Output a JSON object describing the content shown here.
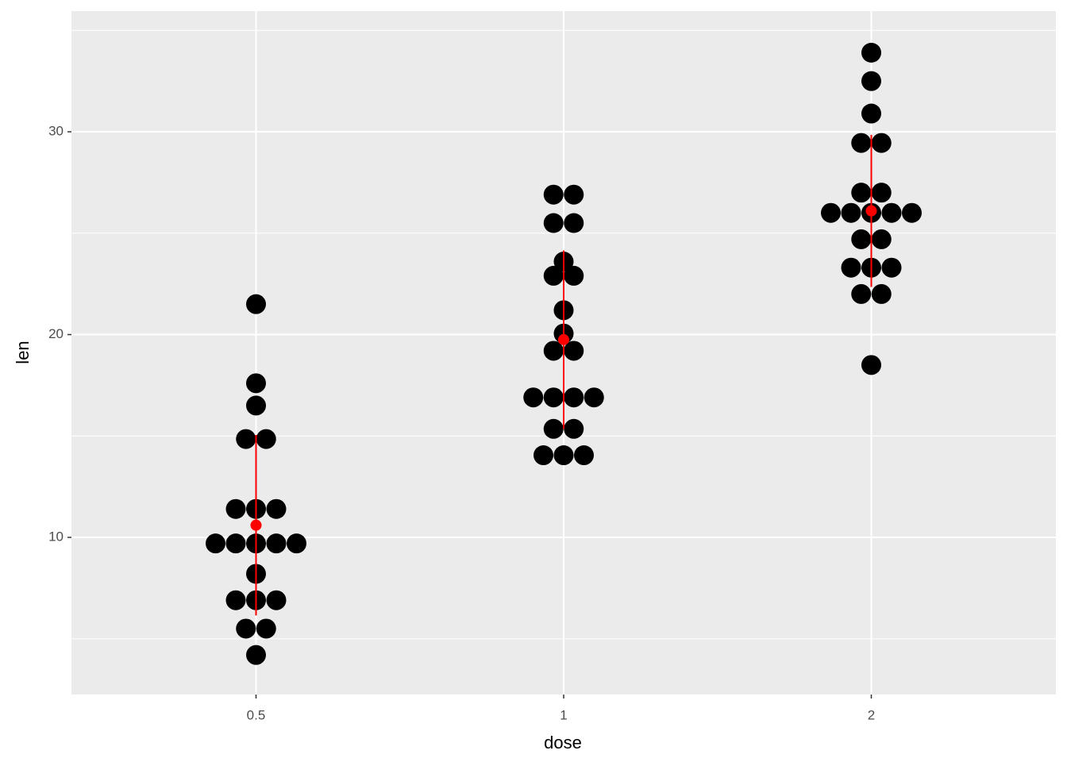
{
  "chart_data": {
    "type": "dotplot",
    "x_label": "dose",
    "y_label": "len",
    "categories": [
      "0.5",
      "1",
      "2"
    ],
    "values": [
      [
        21.5,
        17.6,
        16.5,
        14.85,
        14.85,
        11.4,
        11.4,
        11.4,
        9.7,
        9.7,
        9.7,
        9.7,
        9.7,
        8.2,
        6.9,
        6.9,
        6.9,
        5.5,
        5.5,
        4.2
      ],
      [
        26.9,
        26.9,
        25.5,
        25.5,
        23.6,
        22.9,
        22.9,
        21.2,
        20.05,
        19.2,
        19.2,
        16.9,
        16.9,
        16.9,
        16.9,
        15.35,
        15.35,
        14.05,
        14.05,
        14.05
      ],
      [
        33.9,
        32.5,
        30.9,
        29.45,
        29.45,
        27.0,
        27.0,
        26.0,
        26.0,
        26.0,
        26.0,
        26.0,
        24.7,
        24.7,
        23.3,
        23.3,
        23.3,
        22.0,
        22.0,
        18.5
      ]
    ],
    "means": [
      10.6,
      19.75,
      26.1
    ],
    "errors": [
      4.45,
      4.4,
      3.75
    ],
    "color": "#000000",
    "summary_color": "#ff0000",
    "ylim": [
      2.25,
      35.95
    ],
    "yticks": [
      10,
      20,
      30
    ],
    "y_minor_grid": [
      5,
      15,
      25,
      35
    ],
    "grid": true
  }
}
